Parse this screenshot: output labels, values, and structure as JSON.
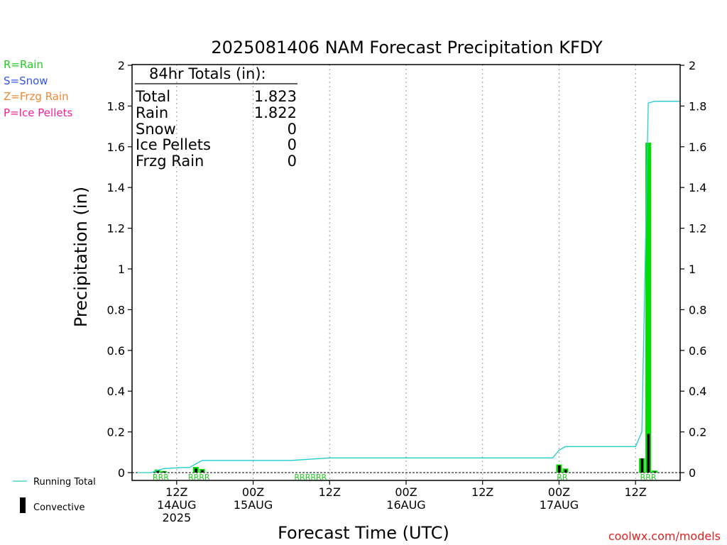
{
  "chart_data": {
    "type": "bar",
    "title": "2025081406 NAM Forecast Precipitation KFDY",
    "xlabel": "Forecast Time (UTC)",
    "ylabel": "Precipitation (in)",
    "ylim": [
      0,
      2
    ],
    "yticks": [
      0,
      0.2,
      0.4,
      0.6,
      0.8,
      1,
      1.2,
      1.4,
      1.6,
      1.8,
      2
    ],
    "ytick_labels": [
      "0",
      "0.2",
      "0.4",
      "0.6",
      "0.8",
      "1",
      "1.2",
      "1.4",
      "1.6",
      "1.8",
      "2"
    ],
    "xlim_hours": [
      -1,
      85
    ],
    "xticks": [
      {
        "hour": 6,
        "label1": "12Z",
        "label2": "14AUG",
        "label3": "2025"
      },
      {
        "hour": 18,
        "label1": "00Z",
        "label2": "15AUG",
        "label3": ""
      },
      {
        "hour": 30,
        "label1": "12Z",
        "label2": "",
        "label3": ""
      },
      {
        "hour": 42,
        "label1": "00Z",
        "label2": "16AUG",
        "label3": ""
      },
      {
        "hour": 54,
        "label1": "12Z",
        "label2": "",
        "label3": ""
      },
      {
        "hour": 66,
        "label1": "00Z",
        "label2": "17AUG",
        "label3": ""
      },
      {
        "hour": 78,
        "label1": "12Z",
        "label2": "",
        "label3": ""
      }
    ],
    "legend": {
      "placement": "left",
      "precip_types": [
        {
          "label": "R=Rain",
          "color": "#22cc22"
        },
        {
          "label": "S=Snow",
          "color": "#3355ee"
        },
        {
          "label": "Z=Frzg Rain",
          "color": "#ee8833"
        },
        {
          "label": "P=Ice Pellets",
          "color": "#ee2299"
        }
      ],
      "running_total_label": "Running Total",
      "convective_label": "Convective"
    },
    "totals_box": {
      "heading": "84hr Totals (in):",
      "rows": [
        {
          "label": "Total",
          "value": "1.823"
        },
        {
          "label": "Rain",
          "value": "1.822"
        },
        {
          "label": "Snow",
          "value": "0"
        },
        {
          "label": "Ice Pellets",
          "value": "0"
        },
        {
          "label": "Frzg Rain",
          "value": "0"
        }
      ]
    },
    "series": [
      {
        "name": "Rain",
        "color": "#00dd00",
        "bars": [
          {
            "hour": 3,
            "value": 0.015
          },
          {
            "hour": 4,
            "value": 0.008
          },
          {
            "hour": 9,
            "value": 0.028
          },
          {
            "hour": 10,
            "value": 0.018
          },
          {
            "hour": 66,
            "value": 0.04
          },
          {
            "hour": 67,
            "value": 0.02
          },
          {
            "hour": 79,
            "value": 0.07
          },
          {
            "hour": 80,
            "value": 1.62
          },
          {
            "hour": 81,
            "value": 0.01
          }
        ]
      },
      {
        "name": "Convective",
        "color": "#000000",
        "bars": [
          {
            "hour": 3,
            "value": 0.01
          },
          {
            "hour": 4,
            "value": 0.005
          },
          {
            "hour": 9,
            "value": 0.02
          },
          {
            "hour": 10,
            "value": 0.012
          },
          {
            "hour": 66,
            "value": 0.035
          },
          {
            "hour": 67,
            "value": 0.015
          },
          {
            "hour": 79,
            "value": 0.07
          },
          {
            "hour": 80,
            "value": 0.19
          },
          {
            "hour": 81,
            "value": 0.005
          }
        ]
      },
      {
        "name": "Running Total",
        "color": "#22cccc",
        "points": [
          [
            0,
            0
          ],
          [
            2,
            0
          ],
          [
            4,
            0.02
          ],
          [
            7,
            0.025
          ],
          [
            8,
            0.025
          ],
          [
            10,
            0.06
          ],
          [
            24,
            0.06
          ],
          [
            30,
            0.072
          ],
          [
            65,
            0.072
          ],
          [
            66,
            0.11
          ],
          [
            67,
            0.128
          ],
          [
            78,
            0.128
          ],
          [
            79,
            0.2
          ],
          [
            80,
            1.815
          ],
          [
            81,
            1.823
          ],
          [
            85,
            1.823
          ]
        ]
      }
    ],
    "type_markers": [
      {
        "hour": 3.5,
        "text": "RRR"
      },
      {
        "hour": 9.5,
        "text": "RRRR"
      },
      {
        "hour": 27,
        "text": "RRRRRR"
      },
      {
        "hour": 66.5,
        "text": "RR"
      },
      {
        "hour": 80,
        "text": "RRR"
      }
    ],
    "grid": "vertical-dotted",
    "watermark": "coolwx.com/models"
  }
}
